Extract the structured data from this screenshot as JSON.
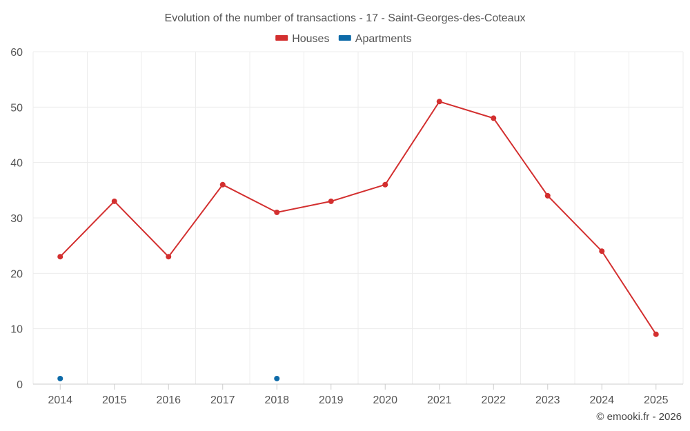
{
  "chart_data": {
    "type": "line",
    "title": "Evolution of the number of transactions - 17 - Saint-Georges-des-Coteaux",
    "categories": [
      "2014",
      "2015",
      "2016",
      "2017",
      "2018",
      "2019",
      "2020",
      "2021",
      "2022",
      "2023",
      "2024",
      "2025"
    ],
    "ylim": [
      0,
      60
    ],
    "yticks": [
      0,
      10,
      20,
      30,
      40,
      50,
      60
    ],
    "grid": true,
    "legend_position": "top-center",
    "series": [
      {
        "name": "Houses",
        "color": "#d32f2f",
        "values": [
          23,
          33,
          23,
          36,
          31,
          33,
          36,
          51,
          48,
          34,
          24,
          9
        ]
      },
      {
        "name": "Apartments",
        "color": "#0d6aa8",
        "values": [
          1,
          null,
          null,
          null,
          1,
          null,
          null,
          null,
          null,
          null,
          null,
          null
        ]
      }
    ],
    "xlabel": "",
    "ylabel": ""
  },
  "credit": "© emooki.fr - 2026"
}
